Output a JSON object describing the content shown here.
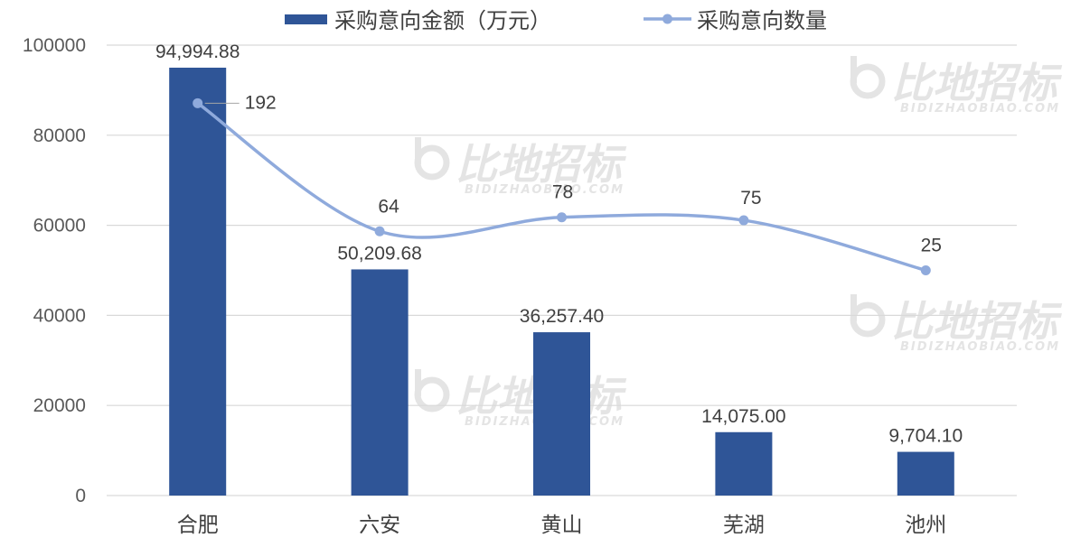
{
  "colors": {
    "bar": "#2f5597",
    "line": "#8faadc",
    "grid": "#d9d9d9",
    "watermark": "#c4c4c4"
  },
  "watermark": {
    "text": "比地招标",
    "subtext": "BIDIZHAOBIAO.COM"
  },
  "chart_data": {
    "type": "bar",
    "categories": [
      "合肥",
      "六安",
      "黄山",
      "芜湖",
      "池州"
    ],
    "series": [
      {
        "name": "采购意向金额（万元）",
        "type": "bar",
        "axis": "left",
        "values": [
          94994.88,
          50209.68,
          36257.4,
          14075.0,
          9704.1
        ],
        "labels": [
          "94,994.88",
          "50,209.68",
          "36,257.40",
          "14,075.00",
          "9,704.10"
        ]
      },
      {
        "name": "采购意向数量",
        "type": "line",
        "axis": "right",
        "smooth": true,
        "markers": true,
        "values": [
          192,
          64,
          78,
          75,
          25
        ],
        "labels": [
          "192",
          "64",
          "78",
          "75",
          "25"
        ]
      }
    ],
    "yticks": [
      "0",
      "20000",
      "40000",
      "60000",
      "80000",
      "100000"
    ],
    "ylim": [
      0,
      100000
    ],
    "y2lim": [
      -200,
      250
    ],
    "secondary_axis_visible": false,
    "grid": true,
    "legend_position": "top"
  }
}
